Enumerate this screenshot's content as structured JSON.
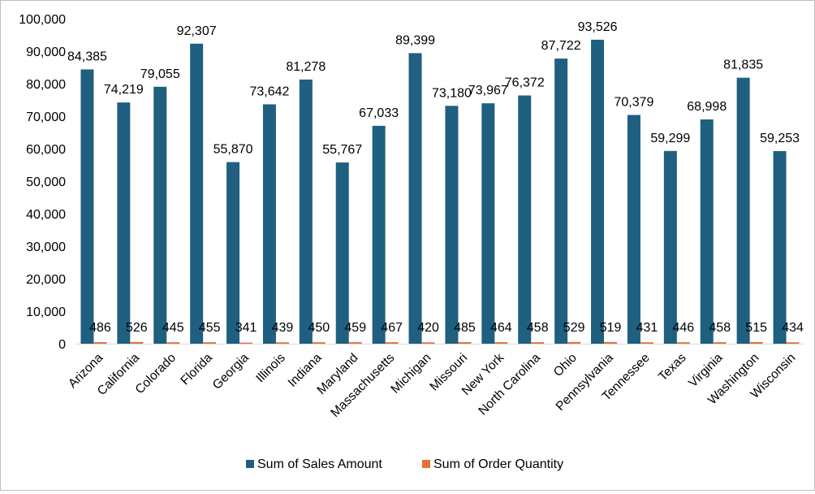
{
  "chart_data": {
    "type": "bar",
    "title": "",
    "xlabel": "",
    "ylabel": "",
    "ylim": [
      0,
      100000
    ],
    "yticks": [
      "0",
      "10,000",
      "20,000",
      "30,000",
      "40,000",
      "50,000",
      "60,000",
      "70,000",
      "80,000",
      "90,000",
      "100,000"
    ],
    "grid": false,
    "legend_position": "bottom",
    "categories": [
      "Arizona",
      "California",
      "Colorado",
      "Florida",
      "Georgia",
      "Illinois",
      "Indiana",
      "Maryland",
      "Massachusetts",
      "Michigan",
      "Missouri",
      "New York",
      "North Carolina",
      "Ohio",
      "Pennsylvania",
      "Tennessee",
      "Texas",
      "Virginia",
      "Washington",
      "Wisconsin"
    ],
    "series": [
      {
        "name": "Sum of Sales Amount",
        "color": "#1f5f80",
        "values": [
          84385,
          74219,
          79055,
          92307,
          55870,
          73642,
          81278,
          55767,
          67033,
          89399,
          73180,
          73967,
          76372,
          87722,
          93526,
          70379,
          59299,
          68998,
          81835,
          59253
        ],
        "labels": [
          "84,385",
          "74,219",
          "79,055",
          "92,307",
          "55,870",
          "73,642",
          "81,278",
          "55,767",
          "67,033",
          "89,399",
          "73,180",
          "73,967",
          "76,372",
          "87,722",
          "93,526",
          "70,379",
          "59,299",
          "68,998",
          "81,835",
          "59,253"
        ]
      },
      {
        "name": "Sum of Order Quantity",
        "color": "#e0743a",
        "values": [
          486,
          526,
          445,
          455,
          341,
          439,
          450,
          459,
          467,
          420,
          485,
          464,
          458,
          529,
          519,
          431,
          446,
          458,
          515,
          434
        ],
        "labels": [
          "486",
          "526",
          "445",
          "455",
          "341",
          "439",
          "450",
          "459",
          "467",
          "420",
          "485",
          "464",
          "458",
          "529",
          "519",
          "431",
          "446",
          "458",
          "515",
          "434"
        ]
      }
    ]
  }
}
